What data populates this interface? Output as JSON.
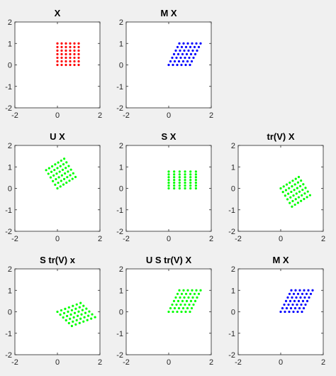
{
  "figure": {
    "background": "#f0f0f0",
    "axes_background": "#ffffff"
  },
  "chart_data": [
    {
      "type": "scatter",
      "title": "X",
      "color": "#ff0000",
      "xlim": [
        -2,
        2
      ],
      "ylim": [
        -2,
        2
      ],
      "xticks": [
        "-2",
        "0",
        "2"
      ],
      "yticks": [
        "2",
        "1",
        "0",
        "-1",
        "-2"
      ],
      "grid": false,
      "transform": [
        [
          1,
          0
        ],
        [
          0,
          1
        ]
      ]
    },
    {
      "type": "scatter",
      "title": "M X",
      "color": "#0000ff",
      "xlim": [
        -2,
        2
      ],
      "ylim": [
        -2,
        2
      ],
      "xticks": [
        "-2",
        "0",
        "2"
      ],
      "yticks": [
        "2",
        "1",
        "0",
        "-1",
        "-2"
      ],
      "grid": false,
      "transform": [
        [
          1,
          0.5
        ],
        [
          0,
          1
        ]
      ]
    },
    {
      "type": "scatter",
      "title": "U X",
      "color": "#00ff00",
      "xlim": [
        -2,
        2
      ],
      "ylim": [
        -2,
        2
      ],
      "xticks": [
        "-2",
        "0",
        "2"
      ],
      "yticks": [
        "2",
        "1",
        "0",
        "-1",
        "-2"
      ],
      "grid": false,
      "transform": [
        [
          -0.53,
          0.85
        ],
        [
          0.85,
          0.53
        ]
      ]
    },
    {
      "type": "scatter",
      "title": "S X",
      "color": "#00ff00",
      "xlim": [
        -2,
        2
      ],
      "ylim": [
        -2,
        2
      ],
      "xticks": [
        "-2",
        "0",
        "2"
      ],
      "yticks": [
        "2",
        "1",
        "0",
        "-1",
        "-2"
      ],
      "grid": false,
      "transform": [
        [
          1.28,
          0
        ],
        [
          0,
          0.78
        ]
      ]
    },
    {
      "type": "scatter",
      "title": "tr(V) X",
      "color": "#00ff00",
      "xlim": [
        -2,
        2
      ],
      "ylim": [
        -2,
        2
      ],
      "xticks": [
        "-2",
        "0",
        "2"
      ],
      "yticks": [
        "2",
        "1",
        "0",
        "-1",
        "-2"
      ],
      "grid": false,
      "transform": [
        [
          0.53,
          0.85
        ],
        [
          -0.85,
          0.53
        ]
      ]
    },
    {
      "type": "scatter",
      "title": "S tr(V) x",
      "color": "#00ff00",
      "xlim": [
        -2,
        2
      ],
      "ylim": [
        -2,
        2
      ],
      "xticks": [
        "-2",
        "0",
        "2"
      ],
      "yticks": [
        "2",
        "1",
        "0",
        "-1",
        "-2"
      ],
      "grid": false,
      "transform": [
        [
          0.68,
          1.09
        ],
        [
          -0.66,
          0.41
        ]
      ]
    },
    {
      "type": "scatter",
      "title": "U S tr(V) X",
      "color": "#00ff00",
      "xlim": [
        -2,
        2
      ],
      "ylim": [
        -2,
        2
      ],
      "xticks": [
        "-2",
        "0",
        "2"
      ],
      "yticks": [
        "2",
        "1",
        "0",
        "-1",
        "-2"
      ],
      "grid": false,
      "transform": [
        [
          1,
          0.5
        ],
        [
          0,
          1
        ]
      ]
    },
    {
      "type": "scatter",
      "title": "M X",
      "color": "#0000ff",
      "xlim": [
        -2,
        2
      ],
      "ylim": [
        -2,
        2
      ],
      "xticks": [
        "-2",
        "0",
        "2"
      ],
      "yticks": [
        "2",
        "1",
        "0",
        "-1",
        "-2"
      ],
      "grid": false,
      "transform": [
        [
          1,
          0.5
        ],
        [
          0,
          1
        ]
      ]
    }
  ]
}
